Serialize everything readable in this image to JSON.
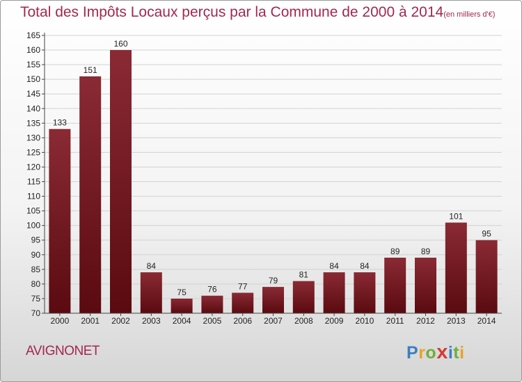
{
  "title": "Total des Impôts Locaux perçus par la Commune de 2000 à 2014",
  "title_unit": "(en milliers d'€)",
  "commune": "AVIGNONET",
  "logo": {
    "text": "Proxiti",
    "letters": [
      {
        "ch": "P",
        "color": "#3a7fc4"
      },
      {
        "ch": "r",
        "color": "#e9a228"
      },
      {
        "ch": "o",
        "color": "#6fae3a"
      },
      {
        "ch": "x",
        "color": "#d63a3a"
      },
      {
        "ch": "i",
        "color": "#3a7fc4"
      },
      {
        "ch": "t",
        "color": "#6fae3a"
      },
      {
        "ch": "i",
        "color": "#e9a228"
      }
    ]
  },
  "chart_data": {
    "type": "bar",
    "categories": [
      "2000",
      "2001",
      "2002",
      "2003",
      "2004",
      "2005",
      "2006",
      "2007",
      "2008",
      "2009",
      "2010",
      "2011",
      "2012",
      "2013",
      "2014"
    ],
    "values": [
      133,
      151,
      160,
      84,
      75,
      76,
      77,
      79,
      81,
      84,
      84,
      89,
      89,
      101,
      95
    ],
    "ylim": [
      70,
      165
    ],
    "ytick_step": 5,
    "grid": true,
    "bar_color_top": "#8a2a34",
    "bar_color_bottom": "#5a0a10"
  }
}
